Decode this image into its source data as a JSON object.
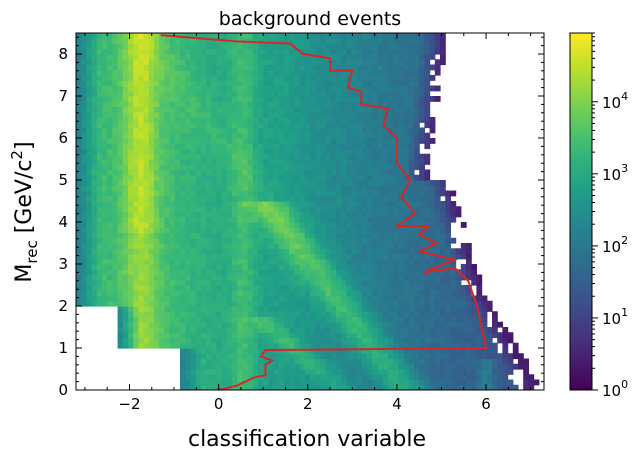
{
  "chart_data": {
    "type": "heatmap",
    "title": "background events",
    "xlabel": "classification variable",
    "ylabel": {
      "main": "M",
      "subscript": "rec",
      "unit_open": " [GeV/c",
      "unit_superscript": "2",
      "unit_close": "]"
    },
    "xlim": [
      -3.2,
      7.3
    ],
    "ylim": [
      0,
      8.5
    ],
    "xticks": [
      {
        "value": -2,
        "label": "−2"
      },
      {
        "value": 0,
        "label": "0"
      },
      {
        "value": 2,
        "label": "2"
      },
      {
        "value": 4,
        "label": "4"
      },
      {
        "value": 6,
        "label": "6"
      }
    ],
    "yticks": [
      {
        "value": 0,
        "label": "0"
      },
      {
        "value": 1,
        "label": "1"
      },
      {
        "value": 2,
        "label": "2"
      },
      {
        "value": 3,
        "label": "3"
      },
      {
        "value": 4,
        "label": "4"
      },
      {
        "value": 5,
        "label": "5"
      },
      {
        "value": 6,
        "label": "6"
      },
      {
        "value": 7,
        "label": "7"
      },
      {
        "value": 8,
        "label": "8"
      }
    ],
    "colorbar": {
      "colormap": "viridis",
      "scale": "log",
      "range": [
        1,
        90000
      ],
      "ticks": [
        {
          "value": 1,
          "base": "10",
          "exp": "0"
        },
        {
          "value": 10,
          "base": "10",
          "exp": "1"
        },
        {
          "value": 100,
          "base": "10",
          "exp": "2"
        },
        {
          "value": 1000,
          "base": "10",
          "exp": "3"
        },
        {
          "value": 10000,
          "base": "10",
          "exp": "4"
        }
      ]
    },
    "selection_boundary": {
      "color": "#d62728",
      "points": [
        [
          0.0,
          0.0
        ],
        [
          0.4,
          0.1
        ],
        [
          0.8,
          0.3
        ],
        [
          1.05,
          0.35
        ],
        [
          1.05,
          0.6
        ],
        [
          1.2,
          0.7
        ],
        [
          0.95,
          0.8
        ],
        [
          1.05,
          0.95
        ],
        [
          6.0,
          1.0
        ],
        [
          5.8,
          2.0
        ],
        [
          5.6,
          2.6
        ],
        [
          5.3,
          2.9
        ],
        [
          4.6,
          2.8
        ],
        [
          5.3,
          3.1
        ],
        [
          4.5,
          3.3
        ],
        [
          4.9,
          3.5
        ],
        [
          4.5,
          3.7
        ],
        [
          4.7,
          3.9
        ],
        [
          4.0,
          3.9
        ],
        [
          4.4,
          4.2
        ],
        [
          4.1,
          4.6
        ],
        [
          4.3,
          5.0
        ],
        [
          4.0,
          5.4
        ],
        [
          4.0,
          6.0
        ],
        [
          3.7,
          6.3
        ],
        [
          3.8,
          6.7
        ],
        [
          3.2,
          6.8
        ],
        [
          3.2,
          7.1
        ],
        [
          2.9,
          7.2
        ],
        [
          3.0,
          7.6
        ],
        [
          2.5,
          7.6
        ],
        [
          2.5,
          7.9
        ],
        [
          1.9,
          8.0
        ],
        [
          1.6,
          8.25
        ],
        [
          0.4,
          8.3
        ],
        [
          -1.3,
          8.45
        ]
      ]
    }
  }
}
